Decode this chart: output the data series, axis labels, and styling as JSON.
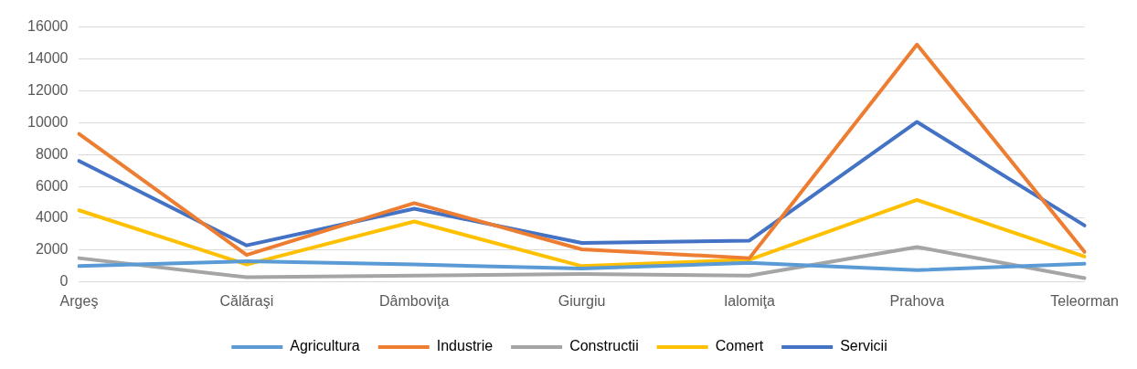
{
  "chart_data": {
    "type": "line",
    "categories": [
      "Argeş",
      "Călăraşi",
      "Dâmboviţa",
      "Giurgiu",
      "Ialomiţa",
      "Prahova",
      "Teleorman"
    ],
    "series": [
      {
        "name": "Agricultura",
        "color": "#5b9bd5",
        "values": [
          1000,
          1300,
          1100,
          850,
          1200,
          750,
          1150
        ]
      },
      {
        "name": "Industrie",
        "color": "#ed7d31",
        "values": [
          9300,
          1700,
          4950,
          2050,
          1500,
          14900,
          1900
        ]
      },
      {
        "name": "Constructii",
        "color": "#a5a5a5",
        "values": [
          1500,
          300,
          400,
          500,
          400,
          2200,
          250
        ]
      },
      {
        "name": "Comert",
        "color": "#ffc000",
        "values": [
          4500,
          1100,
          3800,
          1000,
          1400,
          5150,
          1600
        ]
      },
      {
        "name": "Servicii",
        "color": "#4472c4",
        "values": [
          7600,
          2300,
          4600,
          2450,
          2600,
          10050,
          3550
        ]
      }
    ],
    "ylim": [
      0,
      16000
    ],
    "yticks": [
      0,
      2000,
      4000,
      6000,
      8000,
      10000,
      12000,
      14000,
      16000
    ],
    "grid": "y",
    "legend": "bottom",
    "marker": "none",
    "line_style": "solid"
  }
}
